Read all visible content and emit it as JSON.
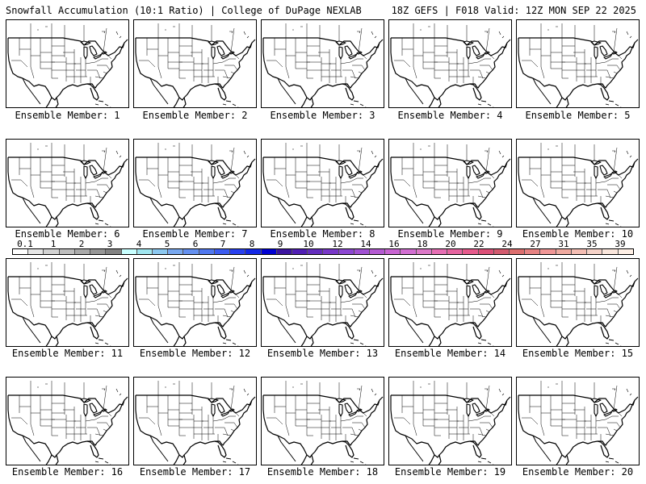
{
  "header": {
    "left": "Snowfall Accumulation (10:1 Ratio) | College of DuPage NEXLAB",
    "right": "18Z GEFS | F018 Valid: 12Z MON SEP 22 2025"
  },
  "members": [
    "Ensemble Member: 1",
    "Ensemble Member: 2",
    "Ensemble Member: 3",
    "Ensemble Member: 4",
    "Ensemble Member: 5",
    "Ensemble Member: 6",
    "Ensemble Member: 7",
    "Ensemble Member: 8",
    "Ensemble Member: 9",
    "Ensemble Member: 10",
    "Ensemble Member: 11",
    "Ensemble Member: 12",
    "Ensemble Member: 13",
    "Ensemble Member: 14",
    "Ensemble Member: 15",
    "Ensemble Member: 16",
    "Ensemble Member: 17",
    "Ensemble Member: 18",
    "Ensemble Member: 19",
    "Ensemble Member: 20"
  ],
  "colorbar": {
    "ticks": [
      "0.1",
      "1",
      "2",
      "3",
      "4",
      "5",
      "6",
      "7",
      "8",
      "9",
      "10",
      "12",
      "14",
      "16",
      "18",
      "20",
      "22",
      "24",
      "27",
      "31",
      "35",
      "39"
    ],
    "colors": [
      "#ffffff",
      "#e6e6e6",
      "#d2d2d2",
      "#bebebe",
      "#aaaaaa",
      "#969696",
      "#828282",
      "#c8ffff",
      "#a0e6f0",
      "#8cc8f0",
      "#78a8f0",
      "#6490f0",
      "#5078f0",
      "#3c5cf0",
      "#2840f0",
      "#1428e6",
      "#0000d2",
      "#3c14a0",
      "#501eb4",
      "#642dbe",
      "#7837c8",
      "#8c46d2",
      "#a050d2",
      "#b45ad2",
      "#c864d2",
      "#d26ed2",
      "#dc78c8",
      "#e66eb4",
      "#e664a0",
      "#e65a8c",
      "#dc5078",
      "#d25a6e",
      "#dc6e6e",
      "#e68282",
      "#f09696",
      "#f0aaa0",
      "#f5beb4",
      "#f5d2c8",
      "#fae6dc",
      "#fff0e6"
    ]
  }
}
